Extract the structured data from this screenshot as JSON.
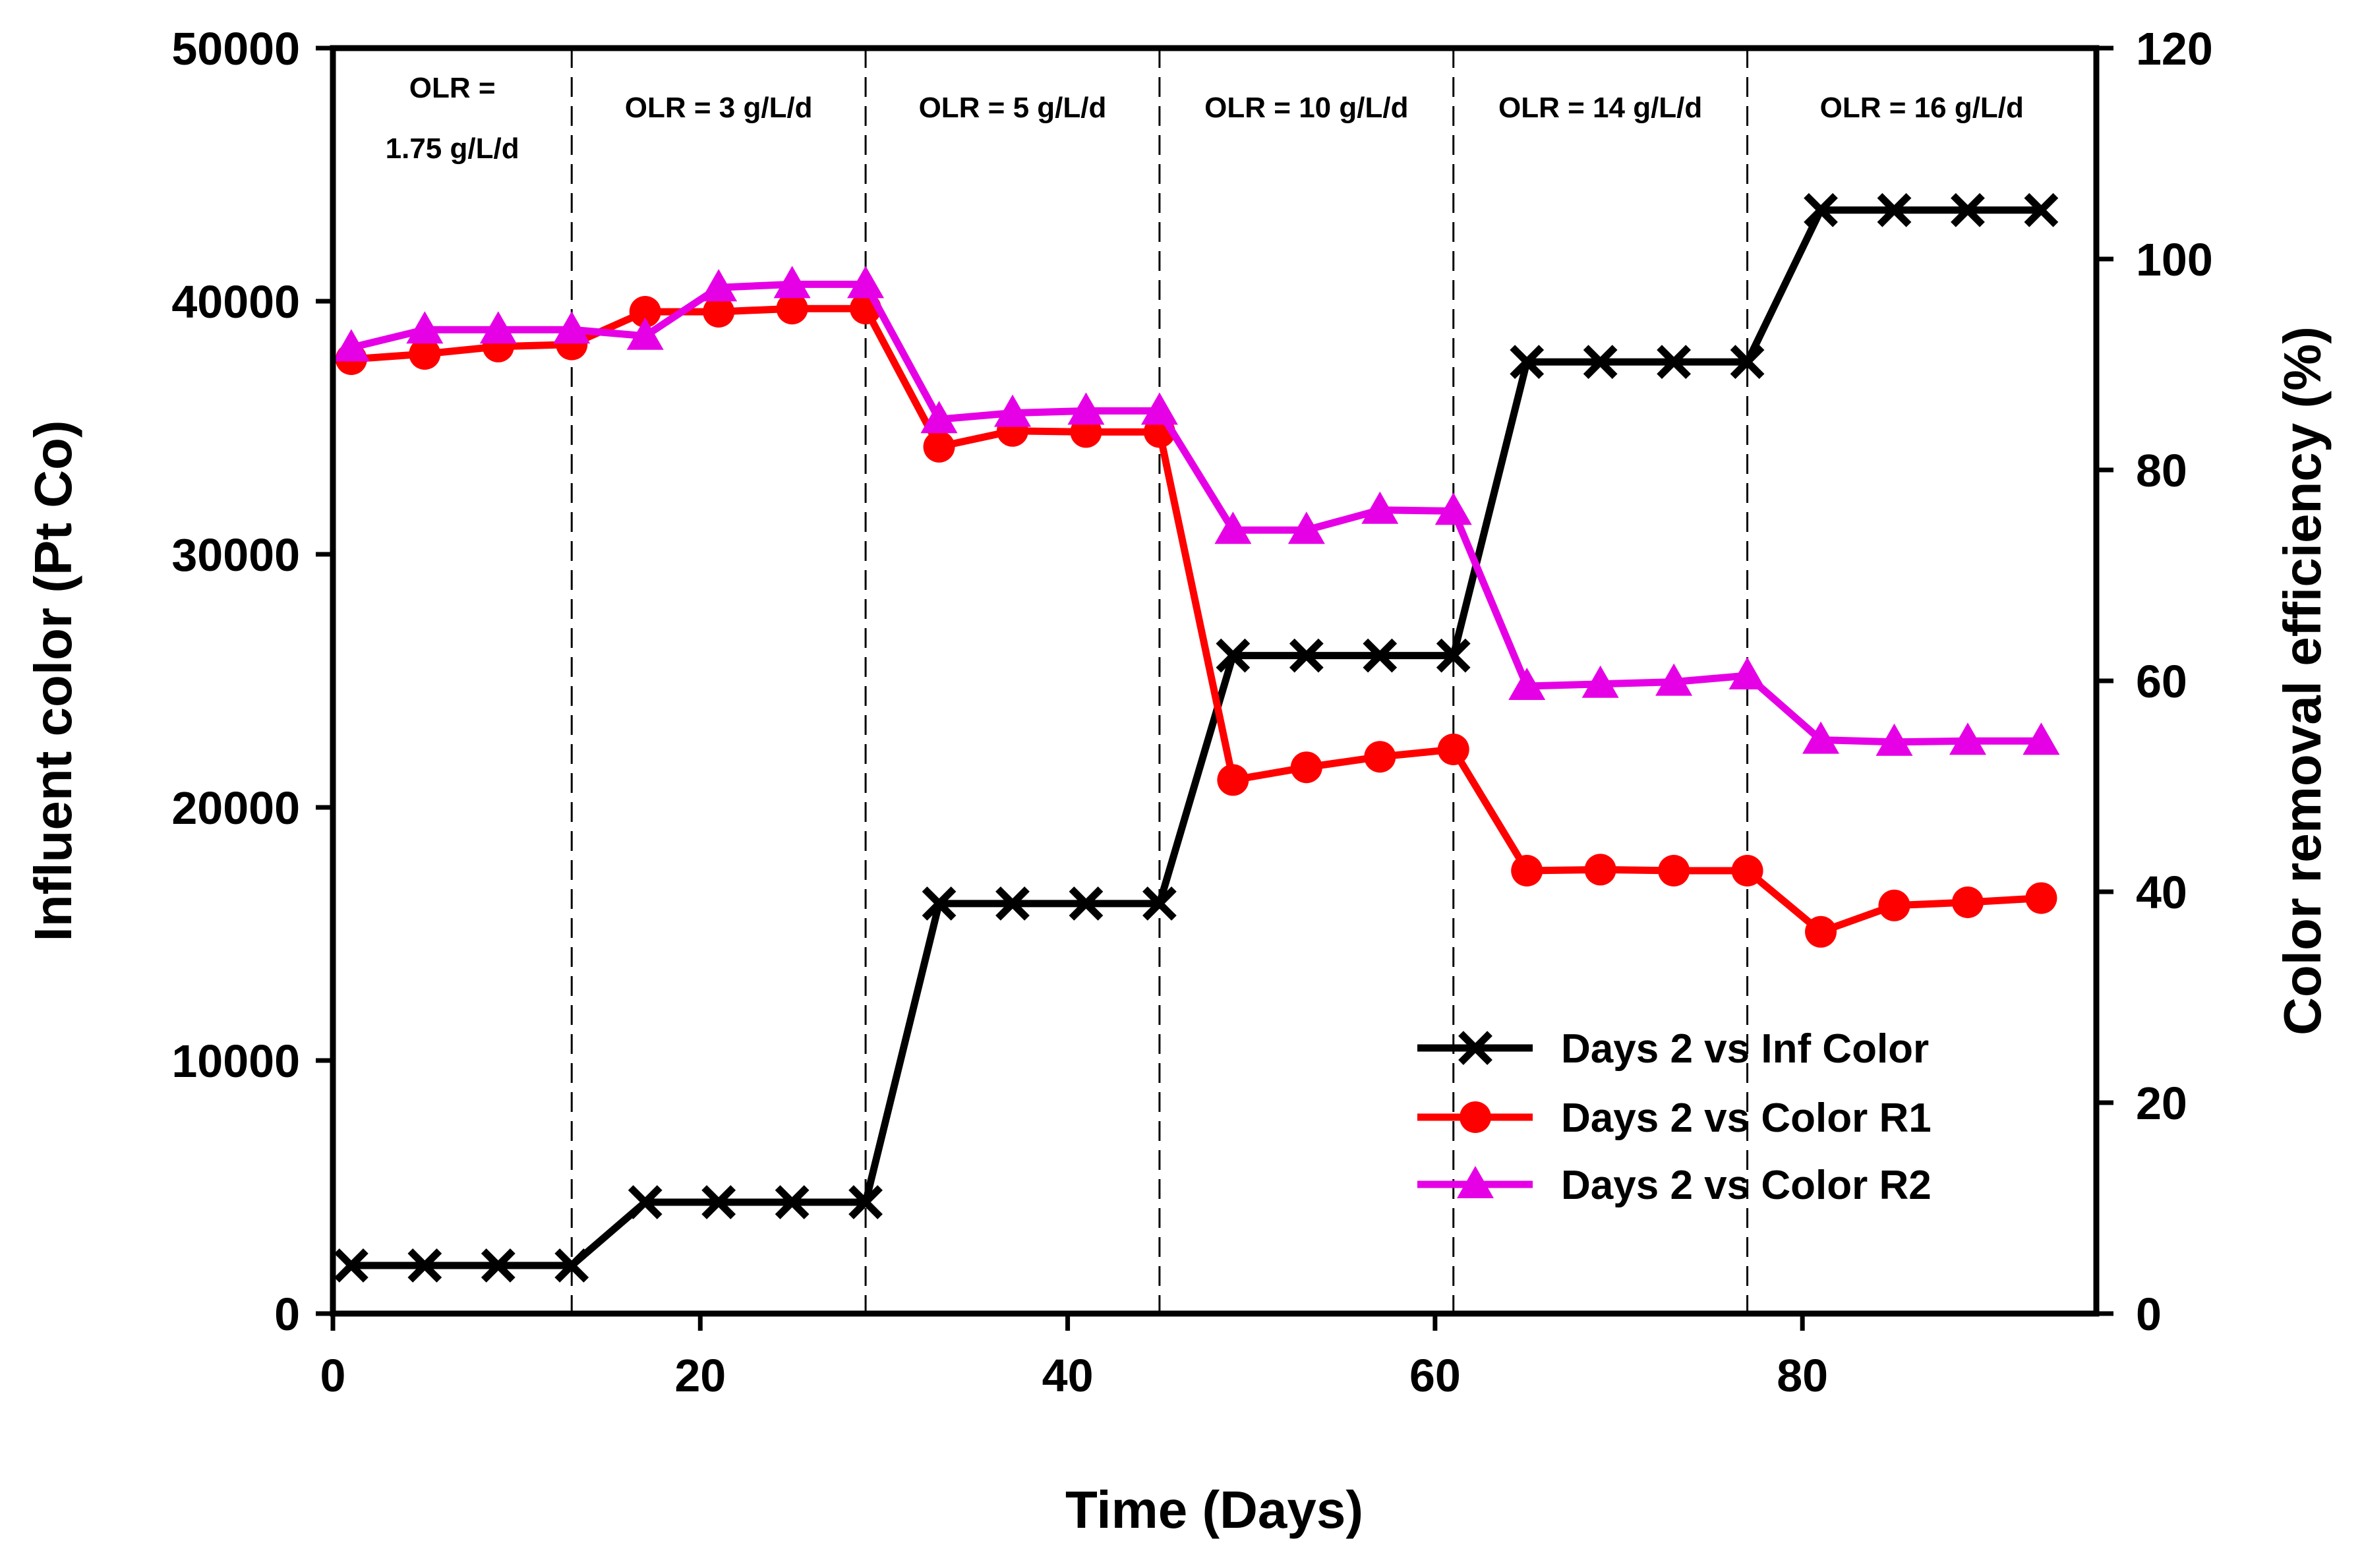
{
  "chart_data": {
    "type": "line",
    "title": "",
    "xlabel": "Time (Days)",
    "ylabel": "Influent color (Pt Co)",
    "y2label": "Color removal efficiency (%)",
    "xlim": [
      0,
      96
    ],
    "ylim": [
      0,
      50000
    ],
    "y2lim": [
      0,
      120
    ],
    "x_ticks": [
      0,
      20,
      40,
      60,
      80
    ],
    "y_ticks": [
      0,
      10000,
      20000,
      30000,
      40000,
      50000
    ],
    "y2_ticks": [
      0,
      20,
      40,
      60,
      80,
      100,
      120
    ],
    "phase_boundaries": [
      13,
      29,
      45,
      61,
      77
    ],
    "phases": [
      {
        "lines": [
          "OLR =",
          "1.75 g/L/d"
        ],
        "start": 0,
        "end": 13
      },
      {
        "lines": [
          "OLR = 3 g/L/d"
        ],
        "start": 13,
        "end": 29
      },
      {
        "lines": [
          "OLR = 5 g/L/d"
        ],
        "start": 29,
        "end": 45
      },
      {
        "lines": [
          "OLR = 10 g/L/d"
        ],
        "start": 45,
        "end": 61
      },
      {
        "lines": [
          "OLR = 14 g/L/d"
        ],
        "start": 61,
        "end": 77
      },
      {
        "lines": [
          "OLR = 16 g/L/d"
        ],
        "start": 77,
        "end": 96
      }
    ],
    "legend_position": "bottom-right",
    "series": [
      {
        "name": "Days 2 vs Inf Color",
        "axis": "left",
        "color": "#000000",
        "marker": "x",
        "x": [
          1,
          5,
          9,
          13,
          17,
          21,
          25,
          29,
          33,
          37,
          41,
          45,
          49,
          53,
          57,
          61,
          65,
          69,
          73,
          77,
          81,
          85,
          89,
          93
        ],
        "values": [
          1900,
          1900,
          1900,
          1900,
          4400,
          4400,
          4400,
          4400,
          16200,
          16200,
          16200,
          16200,
          26000,
          26000,
          26000,
          26000,
          37600,
          37600,
          37600,
          37600,
          43600,
          43600,
          43600,
          43600
        ]
      },
      {
        "name": "Days 2 vs Color R1",
        "axis": "right",
        "color": "#ff0000",
        "marker": "circle",
        "x": [
          1,
          5,
          9,
          13,
          17,
          21,
          25,
          29,
          33,
          37,
          41,
          45,
          49,
          53,
          57,
          61,
          65,
          69,
          73,
          77,
          81,
          85,
          89,
          93
        ],
        "values": [
          90.5,
          91.0,
          91.7,
          91.9,
          95.0,
          95.0,
          95.3,
          95.3,
          82.2,
          83.7,
          83.6,
          83.6,
          50.6,
          51.8,
          52.8,
          53.5,
          42.0,
          42.1,
          42.0,
          42.0,
          36.2,
          38.7,
          39.0,
          39.4
        ]
      },
      {
        "name": "Days 2 vs Color R2",
        "axis": "right",
        "color": "#e600e6",
        "marker": "triangle",
        "x": [
          1,
          5,
          9,
          13,
          17,
          21,
          25,
          29,
          33,
          37,
          41,
          45,
          49,
          53,
          57,
          61,
          65,
          69,
          73,
          77,
          81,
          85,
          89,
          93
        ],
        "values": [
          91.6,
          93.3,
          93.3,
          93.3,
          92.7,
          97.3,
          97.6,
          97.6,
          84.8,
          85.4,
          85.6,
          85.6,
          74.3,
          74.3,
          76.2,
          76.1,
          59.5,
          59.7,
          59.9,
          60.5,
          54.4,
          54.2,
          54.3,
          54.3
        ]
      }
    ]
  }
}
